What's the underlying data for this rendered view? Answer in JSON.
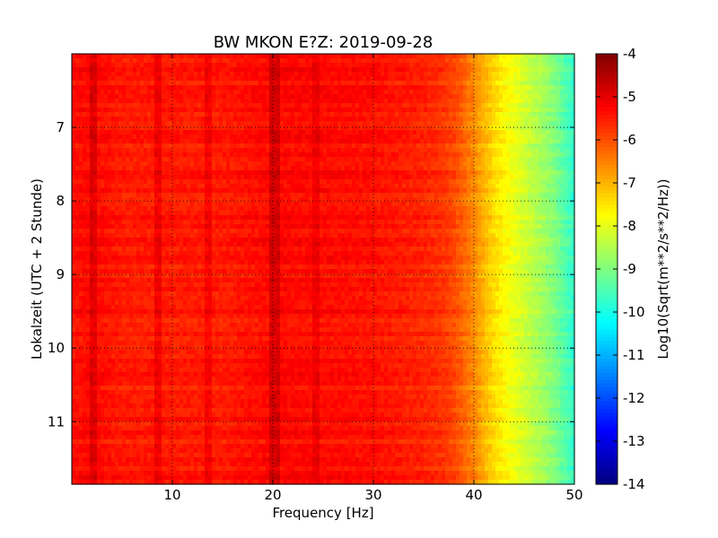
{
  "chart_data": {
    "type": "heatmap",
    "title": "BW MKON E?Z: 2019-09-28",
    "xlabel": "Frequency [Hz]",
    "ylabel": "Lokalzeit (UTC + 2 Stunde)",
    "colorbar_label": "Log10(Sqrt(m**2/s**2/Hz))",
    "xlim": [
      0,
      50
    ],
    "ylim": [
      6.0,
      11.85
    ],
    "y_inverted": true,
    "x_ticks": [
      "10",
      "20",
      "30",
      "40",
      "50"
    ],
    "x_tick_values": [
      10,
      20,
      30,
      40,
      50
    ],
    "y_ticks": [
      "7",
      "8",
      "9",
      "10",
      "11"
    ],
    "y_tick_values": [
      7,
      8,
      9,
      10,
      11
    ],
    "colorbar_ticks": [
      "-4",
      "-5",
      "-6",
      "-7",
      "-8",
      "-9",
      "-10",
      "-11",
      "-12",
      "-13",
      "-14"
    ],
    "colorbar_tick_values": [
      -4,
      -5,
      -6,
      -7,
      -8,
      -9,
      -10,
      -11,
      -12,
      -13,
      -14
    ],
    "colorbar_range": [
      -14,
      -4
    ],
    "colormap": "jet",
    "grid": "dotted",
    "spectrum_profile": {
      "frequency": [
        0,
        2,
        5,
        10,
        15,
        20,
        25,
        30,
        35,
        37,
        38,
        39,
        40,
        41,
        42,
        43,
        44,
        45,
        46,
        47,
        48,
        49,
        50
      ],
      "log_amplitude": [
        -5.4,
        -5.3,
        -5.5,
        -5.5,
        -5.5,
        -5.3,
        -5.35,
        -5.4,
        -5.6,
        -5.75,
        -5.95,
        -6.25,
        -6.6,
        -7.0,
        -7.4,
        -7.7,
        -7.95,
        -8.2,
        -8.45,
        -8.7,
        -9.0,
        -9.4,
        -9.8
      ]
    },
    "line_features": [
      {
        "frequency": 2.2,
        "strength": 0.35
      },
      {
        "frequency": 8.5,
        "strength": 0.35
      },
      {
        "frequency": 13.6,
        "strength": 0.3
      },
      {
        "frequency": 20.2,
        "strength": 0.45
      },
      {
        "frequency": 24.3,
        "strength": 0.25
      }
    ]
  }
}
